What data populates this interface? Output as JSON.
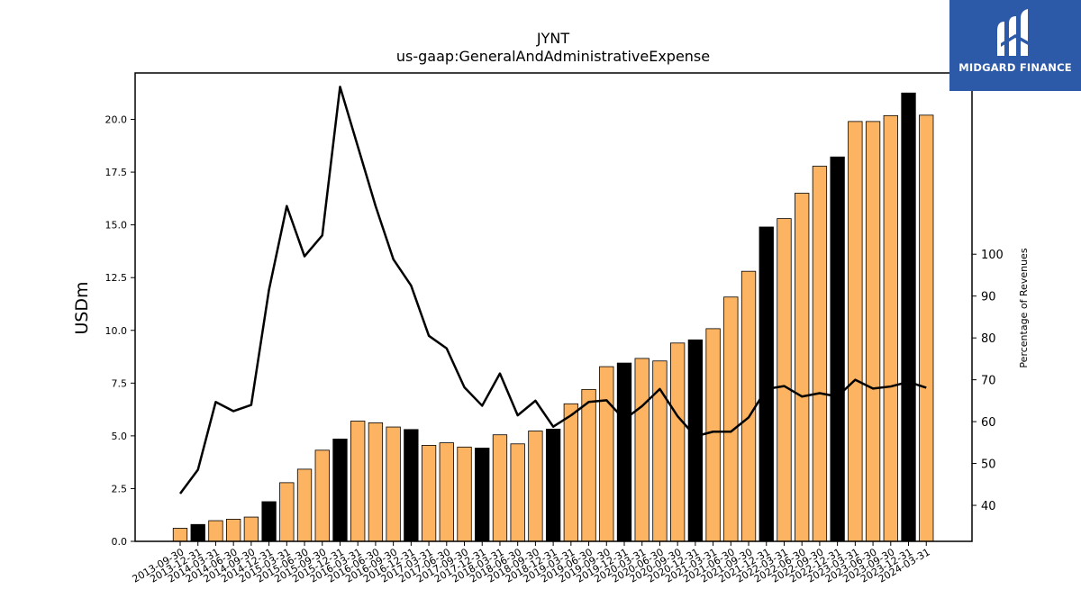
{
  "chart_data": {
    "type": "bar+line",
    "title": "JYNT",
    "subtitle": "us-gaap:GeneralAndAdministrativeExpense",
    "ylabel": "USDm",
    "y2label": "Percentage of Revenues",
    "ylim": [
      0,
      22.2
    ],
    "y2lim": [
      31.4,
      143.3
    ],
    "yticks": [
      "0.0",
      "2.5",
      "5.0",
      "7.5",
      "10.0",
      "12.5",
      "15.0",
      "17.5",
      "20.0"
    ],
    "y2ticks": [
      "40",
      "50",
      "60",
      "70",
      "80",
      "90",
      "100"
    ],
    "categories": [
      "2013-09-30",
      "2013-12-31",
      "2014-03-31",
      "2014-06-30",
      "2014-09-30",
      "2014-12-31",
      "2015-03-31",
      "2015-06-30",
      "2015-09-30",
      "2015-12-31",
      "2016-03-31",
      "2016-06-30",
      "2016-09-30",
      "2016-12-31",
      "2017-03-31",
      "2017-06-30",
      "2017-09-30",
      "2017-12-31",
      "2018-03-31",
      "2018-06-30",
      "2018-09-30",
      "2018-12-31",
      "2019-03-31",
      "2019-06-30",
      "2019-09-30",
      "2019-12-31",
      "2020-03-31",
      "2020-06-30",
      "2020-09-30",
      "2020-12-31",
      "2021-03-31",
      "2021-06-30",
      "2021-09-30",
      "2021-12-31",
      "2022-03-31",
      "2022-06-30",
      "2022-09-30",
      "2022-12-31",
      "2023-03-31",
      "2023-06-30",
      "2023-09-30",
      "2023-12-31",
      "2024-03-31"
    ],
    "bar_values": [
      0.62,
      0.8,
      0.98,
      1.05,
      1.15,
      1.88,
      2.78,
      3.42,
      4.32,
      4.85,
      5.7,
      5.62,
      5.42,
      5.3,
      4.55,
      4.67,
      4.47,
      4.42,
      5.05,
      4.62,
      5.23,
      5.32,
      6.52,
      7.2,
      8.28,
      8.45,
      8.67,
      8.55,
      9.4,
      9.55,
      10.08,
      11.58,
      12.8,
      14.9,
      15.3,
      16.5,
      17.78,
      18.22,
      19.9,
      19.9,
      20.18,
      21.25,
      20.2
    ],
    "bar_highlight": [
      false,
      true,
      false,
      false,
      false,
      true,
      false,
      false,
      false,
      true,
      false,
      false,
      false,
      true,
      false,
      false,
      false,
      true,
      false,
      false,
      false,
      true,
      false,
      false,
      false,
      true,
      false,
      false,
      false,
      true,
      false,
      false,
      false,
      true,
      false,
      false,
      false,
      true,
      false,
      false,
      false,
      true,
      false
    ],
    "line_values": [
      42.8,
      48.5,
      64.7,
      62.5,
      64.0,
      91.5,
      111.5,
      99.5,
      104.5,
      140.0,
      null,
      111.5,
      98.8,
      92.5,
      80.5,
      77.5,
      68.2,
      63.8,
      71.5,
      61.5,
      65.0,
      58.8,
      61.5,
      64.7,
      65.1,
      60.5,
      63.7,
      67.8,
      61.3,
      56.5,
      57.6,
      57.6,
      61.0,
      67.8,
      68.5,
      66.0,
      66.8,
      66.0,
      70.0,
      67.9,
      68.4,
      69.5,
      68.1
    ],
    "colors": {
      "bar": "#fdb462",
      "bar_highlight": "#000000",
      "line": "#000000",
      "logo_bg": "#2d5aa8"
    }
  },
  "logo": {
    "text": "MIDGARD FINANCE"
  }
}
